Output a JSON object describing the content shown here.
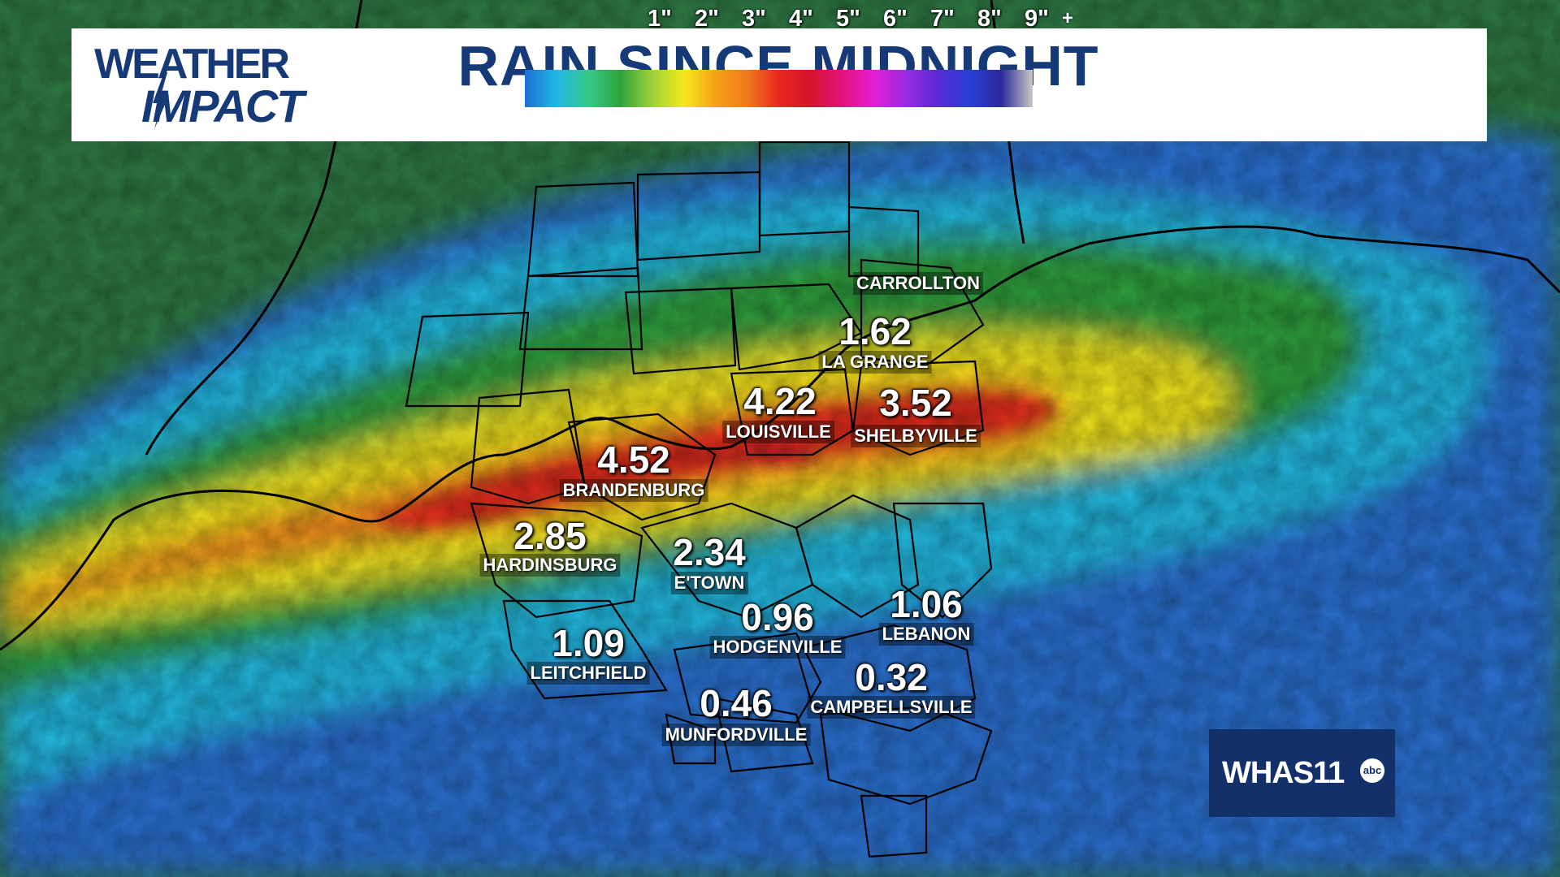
{
  "header": {
    "brand_line1": "WEATHER",
    "brand_line2": "IMPACT",
    "title": "RAIN SINCE MIDNIGHT"
  },
  "legend": {
    "ticks": [
      "1\"",
      "2\"",
      "3\"",
      "4\"",
      "5\"",
      "6\"",
      "7\"",
      "8\"",
      "9\""
    ],
    "plus_label": "+",
    "colors": [
      "#1f6fd6",
      "#21b8e6",
      "#36c98a",
      "#2fa33c",
      "#9ad13a",
      "#f4e81c",
      "#f6a21a",
      "#f07a1c",
      "#e8281f",
      "#d5142a",
      "#e3127d",
      "#e21fd6",
      "#9a2ce0",
      "#5a2ad6",
      "#2a3fd6",
      "#2a2a9a",
      "#c8c8c8"
    ]
  },
  "locations": [
    {
      "name": "CARROLLTON",
      "value": ""
    },
    {
      "name": "LA GRANGE",
      "value": "1.62"
    },
    {
      "name": "LOUISVILLE",
      "value": "4.22"
    },
    {
      "name": "SHELBYVILLE",
      "value": "3.52"
    },
    {
      "name": "BRANDENBURG",
      "value": "4.52"
    },
    {
      "name": "HARDINSBURG",
      "value": "2.85"
    },
    {
      "name": "E'TOWN",
      "value": "2.34"
    },
    {
      "name": "HODGENVILLE",
      "value": "0.96"
    },
    {
      "name": "LEBANON",
      "value": "1.06"
    },
    {
      "name": "LEITCHFIELD",
      "value": "1.09"
    },
    {
      "name": "CAMPBELLSVILLE",
      "value": "0.32"
    },
    {
      "name": "MUNFORDVILLE",
      "value": "0.46"
    }
  ],
  "station": {
    "call_sign": "WHAS11",
    "network": "abc"
  },
  "map_colors": {
    "background": "#2f7a44",
    "light_rain": "#1fb5e0",
    "heavy_rain": "#e8281f"
  }
}
